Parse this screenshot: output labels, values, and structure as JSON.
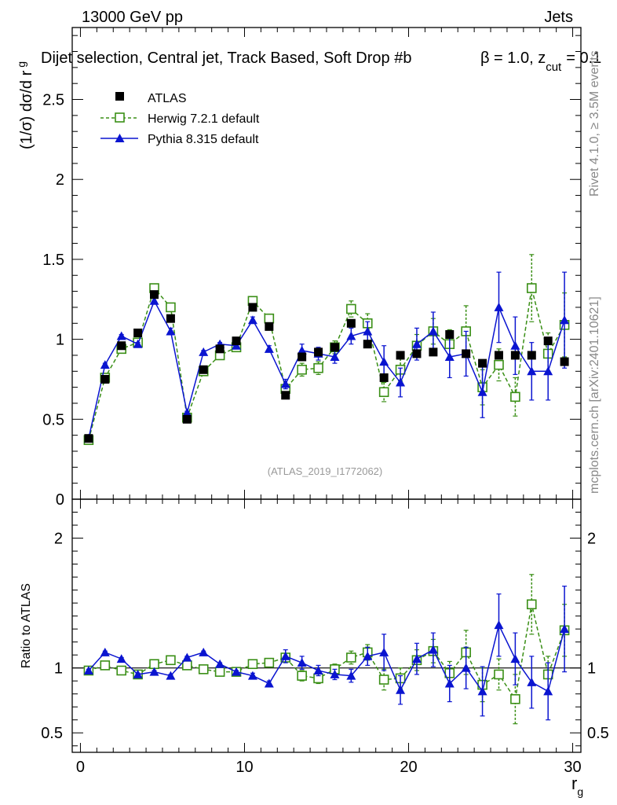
{
  "header": {
    "left": "13000 GeV pp",
    "right": "Jets"
  },
  "title": "Dijet selection, Central jet, Track Based, Soft Drop #b",
  "title_tail": {
    "beta": "β = 1.0, z",
    "cut": "cut",
    "value": "= 0.1"
  },
  "side_labels": {
    "rivet": "Rivet 4.1.0, ≥ 3.5M events",
    "mcplots": "mcplots.cern.ch [arXiv:2401.10621]"
  },
  "watermark": "(ATLAS_2019_I1772062)",
  "colors": {
    "data": "#000000",
    "herwig": "#3a8f16",
    "pythia": "#0a14d0"
  },
  "chart_data": [
    {
      "type": "scatter",
      "panel": "main",
      "ylabel": "(1/σ) dσ/d r",
      "ylabel_sub": "g",
      "xlim": [
        -0.5,
        30.5
      ],
      "ylim": [
        0,
        2.95
      ],
      "yticks": [
        0,
        0.5,
        1,
        1.5,
        2,
        2.5
      ],
      "ytick_labels": [
        "0",
        "0.5",
        "1",
        "1.5",
        "2",
        "2.5"
      ],
      "x": [
        0.5,
        1.5,
        2.5,
        3.5,
        4.5,
        5.5,
        6.5,
        7.5,
        8.5,
        9.5,
        10.5,
        11.5,
        12.5,
        13.5,
        14.5,
        15.5,
        16.5,
        17.5,
        18.5,
        19.5,
        20.5,
        21.5,
        22.5,
        23.5,
        24.5,
        25.5,
        26.5,
        27.5,
        28.5,
        29.5
      ],
      "series": [
        {
          "name": "ATLAS",
          "style": "data",
          "values": [
            0.38,
            0.75,
            0.96,
            1.04,
            1.28,
            1.13,
            0.5,
            0.81,
            0.94,
            0.99,
            1.2,
            1.08,
            0.65,
            0.89,
            0.92,
            0.95,
            1.1,
            0.97,
            0.76,
            0.9,
            0.91,
            0.92,
            1.03,
            0.91,
            0.85,
            0.9,
            0.9,
            0.9,
            0.99,
            0.86
          ],
          "errors": [
            0.01,
            0.01,
            0.01,
            0.01,
            0.01,
            0.01,
            0.01,
            0.01,
            0.01,
            0.01,
            0.01,
            0.01,
            0.01,
            0.02,
            0.02,
            0.02,
            0.02,
            0.02,
            0.02,
            0.02,
            0.02,
            0.02,
            0.02,
            0.02,
            0.02,
            0.02,
            0.02,
            0.02,
            0.02,
            0.02
          ]
        },
        {
          "name": "Herwig 7.2.1 default",
          "style": "herwig",
          "values": [
            0.37,
            0.76,
            0.94,
            0.98,
            1.32,
            1.2,
            0.51,
            0.8,
            0.9,
            0.95,
            1.24,
            1.13,
            0.69,
            0.81,
            0.82,
            0.95,
            1.19,
            1.1,
            0.67,
            0.81,
            0.96,
            1.05,
            0.97,
            1.05,
            0.7,
            0.84,
            0.64,
            1.32,
            0.91,
            1.09
          ],
          "errors": [
            0.01,
            0.01,
            0.01,
            0.01,
            0.02,
            0.02,
            0.01,
            0.02,
            0.02,
            0.02,
            0.02,
            0.02,
            0.03,
            0.04,
            0.04,
            0.04,
            0.05,
            0.06,
            0.06,
            0.07,
            0.07,
            0.08,
            0.09,
            0.16,
            0.11,
            0.1,
            0.12,
            0.21,
            0.13,
            0.2
          ]
        },
        {
          "name": "Pythia 8.315 default",
          "style": "pythia",
          "values": [
            0.38,
            0.84,
            1.02,
            0.97,
            1.24,
            1.05,
            0.54,
            0.92,
            0.97,
            0.96,
            1.12,
            0.94,
            0.72,
            0.93,
            0.91,
            0.89,
            1.02,
            1.05,
            0.86,
            0.73,
            0.97,
            1.05,
            0.89,
            0.91,
            0.67,
            1.2,
            0.96,
            0.8,
            0.8,
            1.12
          ],
          "errors": [
            0.01,
            0.01,
            0.01,
            0.01,
            0.02,
            0.02,
            0.01,
            0.01,
            0.01,
            0.02,
            0.02,
            0.02,
            0.03,
            0.04,
            0.04,
            0.04,
            0.05,
            0.06,
            0.1,
            0.09,
            0.1,
            0.12,
            0.13,
            0.14,
            0.16,
            0.22,
            0.18,
            0.18,
            0.18,
            0.3
          ]
        }
      ],
      "legend": [
        "ATLAS",
        "Herwig 7.2.1 default",
        "Pythia 8.315 default"
      ]
    },
    {
      "type": "line",
      "panel": "ratio",
      "ylabel": "Ratio to ATLAS",
      "xlabel": "r",
      "xlabel_sub": "g",
      "xlim": [
        -0.5,
        30.5
      ],
      "ylim": [
        0.35,
        2.3
      ],
      "xticks": [
        0,
        10,
        20,
        30
      ],
      "xtick_labels": [
        "0",
        "10",
        "20",
        "30"
      ],
      "yticks": [
        0.5,
        1,
        2
      ],
      "ytick_labels": [
        "0.5",
        "1",
        "2"
      ],
      "x": [
        0.5,
        1.5,
        2.5,
        3.5,
        4.5,
        5.5,
        6.5,
        7.5,
        8.5,
        9.5,
        10.5,
        11.5,
        12.5,
        13.5,
        14.5,
        15.5,
        16.5,
        17.5,
        18.5,
        19.5,
        20.5,
        21.5,
        22.5,
        23.5,
        24.5,
        25.5,
        26.5,
        27.5,
        28.5,
        29.5
      ],
      "reference": 1,
      "series": [
        {
          "name": "Herwig 7.2.1 default",
          "style": "herwig",
          "values": [
            0.98,
            1.02,
            0.98,
            0.95,
            1.03,
            1.06,
            1.02,
            0.99,
            0.97,
            0.97,
            1.03,
            1.04,
            1.08,
            0.94,
            0.92,
            0.99,
            1.08,
            1.12,
            0.91,
            0.92,
            1.06,
            1.13,
            0.96,
            1.12,
            0.87,
            0.95,
            0.76,
            1.49,
            0.95,
            1.29
          ],
          "errors": [
            0.01,
            0.01,
            0.01,
            0.01,
            0.01,
            0.01,
            0.01,
            0.01,
            0.01,
            0.01,
            0.02,
            0.02,
            0.03,
            0.04,
            0.04,
            0.04,
            0.05,
            0.06,
            0.08,
            0.08,
            0.08,
            0.09,
            0.09,
            0.17,
            0.13,
            0.12,
            0.19,
            0.23,
            0.14,
            0.2
          ]
        },
        {
          "name": "Pythia 8.315 default",
          "style": "pythia",
          "values": [
            0.98,
            1.12,
            1.07,
            0.95,
            0.97,
            0.94,
            1.08,
            1.12,
            1.03,
            0.97,
            0.94,
            0.88,
            1.09,
            1.04,
            0.98,
            0.95,
            0.94,
            1.09,
            1.12,
            0.83,
            1.07,
            1.14,
            0.88,
            1.0,
            0.82,
            1.33,
            1.07,
            0.89,
            0.82,
            1.3
          ],
          "errors": [
            0.01,
            0.01,
            0.01,
            0.01,
            0.01,
            0.01,
            0.01,
            0.01,
            0.01,
            0.01,
            0.02,
            0.02,
            0.05,
            0.05,
            0.04,
            0.04,
            0.05,
            0.07,
            0.14,
            0.11,
            0.12,
            0.13,
            0.14,
            0.16,
            0.19,
            0.24,
            0.2,
            0.2,
            0.22,
            0.33
          ]
        }
      ]
    }
  ]
}
